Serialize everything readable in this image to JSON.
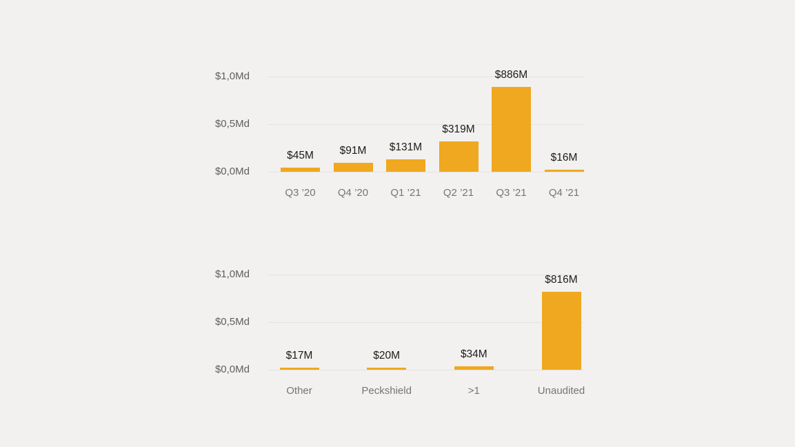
{
  "page": {
    "background_color": "#f2f1ef",
    "bar_color": "#efa81f",
    "gridline_color": "#e4e3e0",
    "tick_text_color": "#5f5f5f",
    "category_text_color": "#757575",
    "value_text_color": "#1b1b1b"
  },
  "chart_data": [
    {
      "type": "bar",
      "name": "value-by-quarter",
      "title": "",
      "categories": [
        "Q3 ’20",
        "Q4 ’20",
        "Q1 ’21",
        "Q2 ’21",
        "Q3 ’21",
        "Q4 ’21"
      ],
      "values": [
        45,
        91,
        131,
        319,
        886,
        16
      ],
      "value_labels": [
        "$45M",
        "$91M",
        "$131M",
        "$319M",
        "$886M",
        "$16M"
      ],
      "unit": "$M",
      "y_tick_labels": [
        "$1,0Md",
        "$0,5Md",
        "$0,0Md"
      ],
      "y_tick_values": [
        1000,
        500,
        0
      ],
      "ylim": [
        0,
        1000
      ],
      "grid": true,
      "legend": "none"
    },
    {
      "type": "bar",
      "name": "value-by-auditor",
      "title": "",
      "categories": [
        "Other",
        "Peckshield",
        ">1",
        "Unaudited"
      ],
      "values": [
        17,
        20,
        34,
        816
      ],
      "value_labels": [
        "$17M",
        "$20M",
        "$34M",
        "$816M"
      ],
      "unit": "$M",
      "y_tick_labels": [
        "$1,0Md",
        "$0,5Md",
        "$0,0Md"
      ],
      "y_tick_values": [
        1000,
        500,
        0
      ],
      "ylim": [
        0,
        1000
      ],
      "grid": true,
      "legend": "none"
    }
  ]
}
